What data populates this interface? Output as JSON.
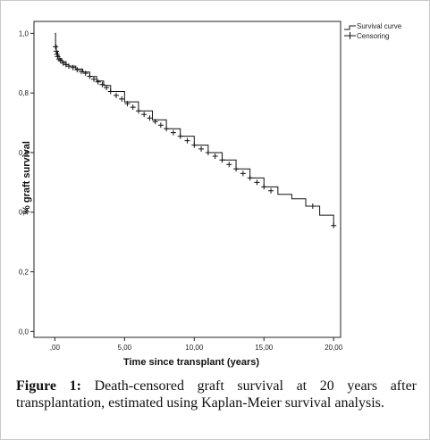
{
  "chart_data": {
    "type": "line",
    "xlabel": "Time since transplant (years)",
    "ylabel": "% graft survival",
    "xlim": [
      -1.5,
      20.5
    ],
    "ylim": [
      -0.02,
      1.04
    ],
    "x_ticks": [
      0,
      5,
      10,
      15,
      20
    ],
    "x_tick_labels": [
      ",00",
      "5,00",
      "10,00",
      "15,00",
      "20,00"
    ],
    "y_ticks": [
      0,
      0.2,
      0.4,
      0.6,
      0.8,
      1.0
    ],
    "y_tick_labels": [
      "0,0",
      "0,2",
      "0,4",
      "0,6",
      "0,8",
      "1,0"
    ],
    "legend": [
      "Survival curve",
      "Censoring"
    ],
    "legend_position": "top-right",
    "series": [
      {
        "name": "Survival curve",
        "x": [
          0,
          0.05,
          0.1,
          0.2,
          0.3,
          0.5,
          0.8,
          1.0,
          1.5,
          2.0,
          2.5,
          3.0,
          3.5,
          4.0,
          5.0,
          6.0,
          7.0,
          8.0,
          9.0,
          10.0,
          11.0,
          12.0,
          13.0,
          14.0,
          15.0,
          16.0,
          17.0,
          18.0,
          19.0,
          20.0
        ],
        "y": [
          1.0,
          0.96,
          0.94,
          0.925,
          0.915,
          0.905,
          0.895,
          0.89,
          0.88,
          0.87,
          0.855,
          0.84,
          0.825,
          0.805,
          0.77,
          0.74,
          0.71,
          0.68,
          0.655,
          0.625,
          0.6,
          0.575,
          0.545,
          0.515,
          0.485,
          0.46,
          0.445,
          0.42,
          0.39,
          0.355
        ]
      },
      {
        "name": "Censoring",
        "x": [
          0.05,
          0.1,
          0.15,
          0.2,
          0.3,
          0.4,
          0.6,
          0.8,
          1.0,
          1.3,
          1.6,
          1.9,
          2.2,
          2.5,
          2.8,
          3.1,
          3.4,
          3.7,
          4.0,
          4.4,
          4.8,
          5.2,
          5.6,
          6.0,
          6.4,
          6.8,
          7.2,
          7.6,
          8.0,
          8.5,
          9.0,
          9.5,
          10.0,
          10.5,
          11.0,
          11.5,
          12.0,
          12.5,
          13.0,
          13.5,
          14.0,
          14.5,
          15.0,
          15.5,
          18.5,
          20.0
        ],
        "y": [
          0.955,
          0.94,
          0.93,
          0.922,
          0.914,
          0.909,
          0.9,
          0.895,
          0.89,
          0.885,
          0.878,
          0.872,
          0.866,
          0.856,
          0.846,
          0.837,
          0.828,
          0.818,
          0.805,
          0.792,
          0.78,
          0.764,
          0.752,
          0.74,
          0.728,
          0.716,
          0.704,
          0.692,
          0.68,
          0.667,
          0.655,
          0.64,
          0.625,
          0.612,
          0.6,
          0.588,
          0.575,
          0.56,
          0.545,
          0.53,
          0.515,
          0.5,
          0.485,
          0.472,
          0.42,
          0.355
        ]
      }
    ]
  },
  "caption": {
    "label": "Figure 1:",
    "text": " Death-censored graft survival at 20 years after transplantation, estimated using Kaplan-Meier survival analysis."
  }
}
